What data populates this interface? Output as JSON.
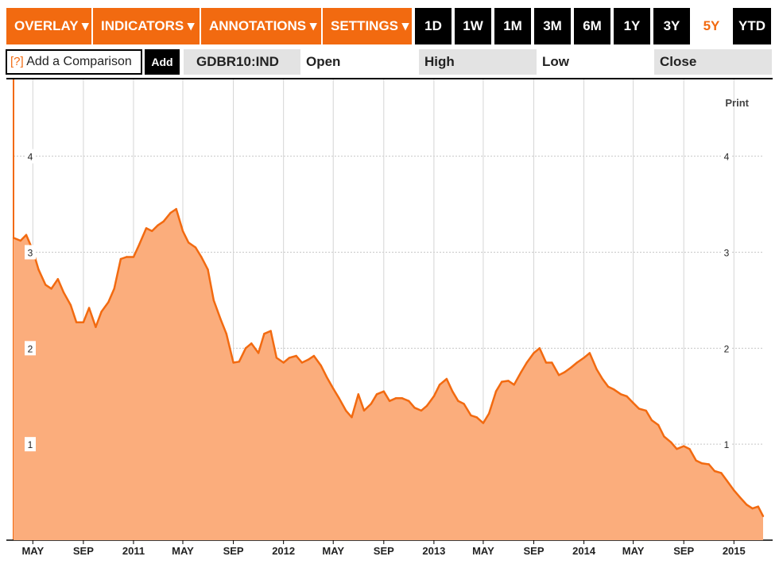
{
  "toolbar": {
    "menus": [
      {
        "label": "OVERLAY ▾"
      },
      {
        "label": "INDICATORS ▾"
      },
      {
        "label": "ANNOTATIONS ▾"
      },
      {
        "label": "SETTINGS ▾"
      }
    ],
    "periods": [
      {
        "label": "1D",
        "active": false
      },
      {
        "label": "1W",
        "active": false
      },
      {
        "label": "1M",
        "active": false
      },
      {
        "label": "3M",
        "active": false
      },
      {
        "label": "6M",
        "active": false
      },
      {
        "label": "1Y",
        "active": false
      },
      {
        "label": "3Y",
        "active": false
      },
      {
        "label": "5Y",
        "active": true
      },
      {
        "label": "YTD",
        "active": false
      }
    ]
  },
  "comparison": {
    "help": "[?]",
    "placeholder": "Add a Comparison",
    "add_label": "Add"
  },
  "quote": {
    "ticker": "GDBR10:IND",
    "open_label": "Open",
    "high_label": "High",
    "low_label": "Low",
    "close_label": "Close"
  },
  "print_label": "Print",
  "colors": {
    "accent": "#f26a10",
    "area_fill": "#fbad7c",
    "line": "#f26a10"
  },
  "chart_data": {
    "type": "area",
    "title": "",
    "xlabel": "",
    "ylabel": "",
    "ylim": [
      0,
      4.8
    ],
    "y_ticks": [
      1,
      2,
      3,
      4
    ],
    "grid": true,
    "x_ticks": [
      "MAY",
      "SEP",
      "2011",
      "MAY",
      "SEP",
      "2012",
      "MAY",
      "SEP",
      "2013",
      "MAY",
      "SEP",
      "2014",
      "MAY",
      "SEP",
      "2015"
    ],
    "x_tick_dates": [
      "2010-05-01",
      "2010-09-01",
      "2011-01-01",
      "2011-05-01",
      "2011-09-01",
      "2012-01-01",
      "2012-05-01",
      "2012-09-01",
      "2013-01-01",
      "2013-05-01",
      "2013-09-01",
      "2014-01-01",
      "2014-05-01",
      "2014-09-01",
      "2015-01-01"
    ],
    "xlim": [
      "2010-03-15",
      "2015-03-13"
    ],
    "series": [
      {
        "x": [
          "2010-03-15",
          "2010-04-01",
          "2010-04-15",
          "2010-05-01",
          "2010-05-15",
          "2010-06-01",
          "2010-06-15",
          "2010-07-01",
          "2010-07-15",
          "2010-08-01",
          "2010-08-15",
          "2010-09-01",
          "2010-09-15",
          "2010-10-01",
          "2010-10-15",
          "2010-11-01",
          "2010-11-15",
          "2010-12-01",
          "2010-12-15",
          "2011-01-01",
          "2011-01-15",
          "2011-02-01",
          "2011-02-15",
          "2011-03-01",
          "2011-03-15",
          "2011-04-01",
          "2011-04-15",
          "2011-05-01",
          "2011-05-15",
          "2011-06-01",
          "2011-06-15",
          "2011-07-01",
          "2011-07-15",
          "2011-08-01",
          "2011-08-15",
          "2011-09-01",
          "2011-09-15",
          "2011-10-01",
          "2011-10-15",
          "2011-11-01",
          "2011-11-15",
          "2011-12-01",
          "2011-12-15",
          "2012-01-01",
          "2012-01-15",
          "2012-02-01",
          "2012-02-15",
          "2012-03-01",
          "2012-03-15",
          "2012-04-01",
          "2012-04-15",
          "2012-05-01",
          "2012-05-15",
          "2012-06-01",
          "2012-06-15",
          "2012-07-01",
          "2012-07-15",
          "2012-08-01",
          "2012-08-15",
          "2012-09-01",
          "2012-09-15",
          "2012-10-01",
          "2012-10-15",
          "2012-11-01",
          "2012-11-15",
          "2012-12-01",
          "2012-12-15",
          "2013-01-01",
          "2013-01-15",
          "2013-02-01",
          "2013-02-15",
          "2013-03-01",
          "2013-03-15",
          "2013-04-01",
          "2013-04-15",
          "2013-05-01",
          "2013-05-15",
          "2013-06-01",
          "2013-06-15",
          "2013-07-01",
          "2013-07-15",
          "2013-08-01",
          "2013-08-15",
          "2013-09-01",
          "2013-09-15",
          "2013-10-01",
          "2013-10-15",
          "2013-11-01",
          "2013-11-15",
          "2013-12-01",
          "2013-12-15",
          "2014-01-01",
          "2014-01-15",
          "2014-02-01",
          "2014-02-15",
          "2014-03-01",
          "2014-03-15",
          "2014-04-01",
          "2014-04-15",
          "2014-05-01",
          "2014-05-15",
          "2014-06-01",
          "2014-06-15",
          "2014-07-01",
          "2014-07-15",
          "2014-08-01",
          "2014-08-15",
          "2014-09-01",
          "2014-09-15",
          "2014-10-01",
          "2014-10-15",
          "2014-11-01",
          "2014-11-15",
          "2014-12-01",
          "2014-12-15",
          "2015-01-01",
          "2015-01-15",
          "2015-02-01",
          "2015-02-15",
          "2015-03-01",
          "2015-03-13"
        ],
        "values": [
          3.15,
          3.12,
          3.18,
          3.02,
          2.82,
          2.66,
          2.62,
          2.72,
          2.58,
          2.45,
          2.27,
          2.27,
          2.42,
          2.22,
          2.38,
          2.48,
          2.62,
          2.93,
          2.95,
          2.95,
          3.08,
          3.25,
          3.22,
          3.28,
          3.32,
          3.41,
          3.45,
          3.22,
          3.1,
          3.05,
          2.95,
          2.82,
          2.5,
          2.3,
          2.15,
          1.85,
          1.86,
          2.0,
          2.05,
          1.95,
          2.15,
          2.18,
          1.9,
          1.85,
          1.9,
          1.92,
          1.85,
          1.88,
          1.92,
          1.82,
          1.7,
          1.58,
          1.48,
          1.35,
          1.28,
          1.52,
          1.35,
          1.42,
          1.52,
          1.55,
          1.45,
          1.48,
          1.48,
          1.45,
          1.38,
          1.35,
          1.4,
          1.5,
          1.62,
          1.68,
          1.55,
          1.45,
          1.42,
          1.3,
          1.28,
          1.22,
          1.32,
          1.55,
          1.65,
          1.66,
          1.62,
          1.75,
          1.85,
          1.95,
          2.0,
          1.85,
          1.85,
          1.72,
          1.75,
          1.8,
          1.85,
          1.9,
          1.95,
          1.78,
          1.68,
          1.6,
          1.57,
          1.52,
          1.5,
          1.43,
          1.37,
          1.35,
          1.25,
          1.2,
          1.08,
          1.02,
          0.95,
          0.98,
          0.95,
          0.83,
          0.8,
          0.79,
          0.72,
          0.7,
          0.62,
          0.52,
          0.45,
          0.37,
          0.33,
          0.35,
          0.25
        ]
      }
    ]
  }
}
